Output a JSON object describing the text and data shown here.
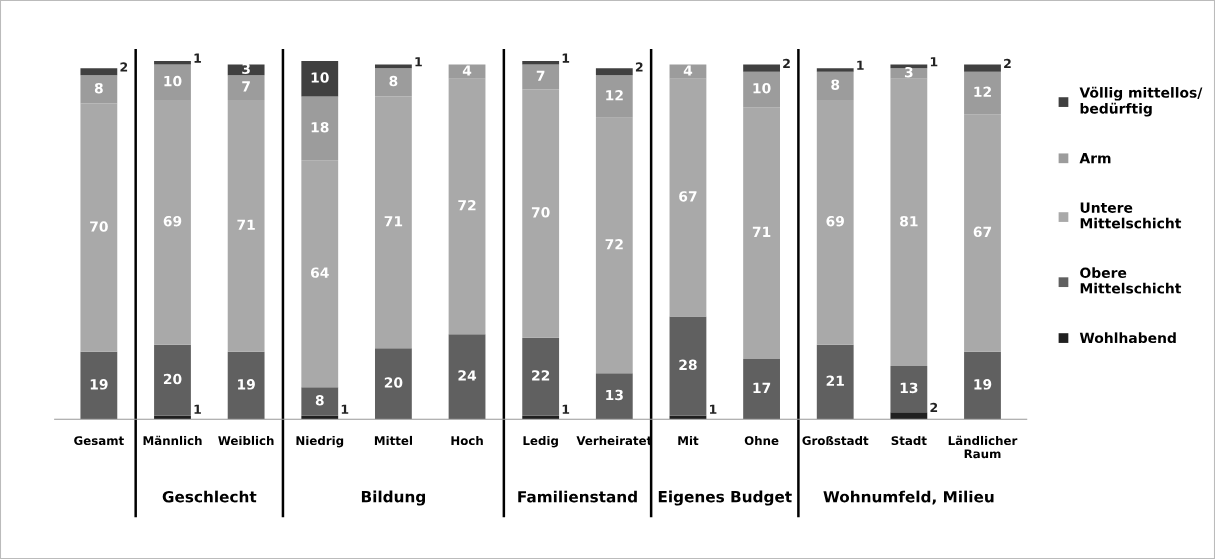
{
  "chart_data": {
    "type": "bar",
    "stacked": true,
    "data_labels": true,
    "legend": "right",
    "grid": false,
    "tick_labels": "x",
    "categories": [
      "Gesamt",
      "Männlich",
      "Weiblich",
      "Niedrig",
      "Mittel",
      "Hoch",
      "Ledig",
      "Verheiratet",
      "Mit",
      "Ohne",
      "Großstadt",
      "Stadt",
      "Ländlicher Raum"
    ],
    "series": [
      {
        "name": "Wohlhabend",
        "color": "#202020",
        "values": [
          null,
          1,
          null,
          1,
          null,
          null,
          1,
          null,
          1,
          null,
          null,
          2,
          null
        ]
      },
      {
        "name": "Obere Mittelschicht",
        "color": "#606060",
        "values": [
          19,
          20,
          19,
          8,
          20,
          24,
          22,
          13,
          28,
          17,
          21,
          13,
          19
        ]
      },
      {
        "name": "Untere Mittelschicht",
        "color": "#a9a9a9",
        "values": [
          70,
          69,
          71,
          64,
          71,
          72,
          70,
          72,
          67,
          71,
          69,
          81,
          67
        ]
      },
      {
        "name": "Arm",
        "color": "#9c9c9c",
        "values": [
          8,
          10,
          7,
          18,
          8,
          4,
          7,
          12,
          4,
          10,
          8,
          3,
          12
        ]
      },
      {
        "name": "Völlig mittellos/ bedürftig",
        "color": "#404040",
        "values": [
          2,
          1,
          3,
          10,
          1,
          null,
          1,
          2,
          null,
          2,
          1,
          1,
          2
        ]
      }
    ],
    "annotations": [
      "Geschlecht",
      "Bildung",
      "Familienstand",
      "Eigenes Budget",
      "Wohnumfeld, Milieu"
    ]
  }
}
